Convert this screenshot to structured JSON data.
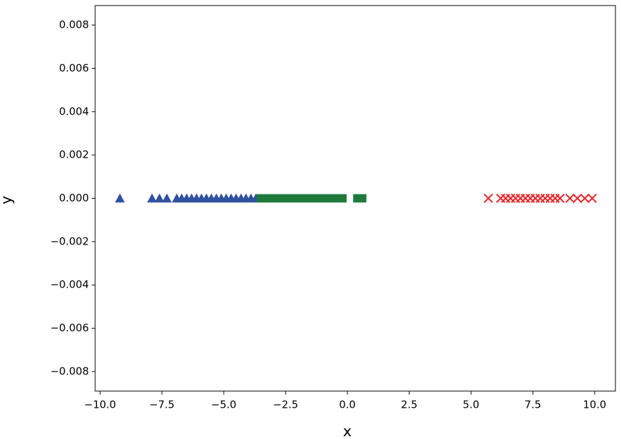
{
  "chart_data": {
    "type": "scatter",
    "x_label": "x",
    "y_label": "y",
    "xlim": [
      -10.2,
      10.84
    ],
    "ylim": [
      -0.0089,
      0.0089
    ],
    "xticks": [
      {
        "value": -10,
        "label": "−10.0"
      },
      {
        "value": -7.5,
        "label": "−7.5"
      },
      {
        "value": -5,
        "label": "−5.0"
      },
      {
        "value": -2.5,
        "label": "−2.5"
      },
      {
        "value": 0,
        "label": "0.0"
      },
      2.5,
      {
        "value": 5,
        "label": "5.0"
      },
      7.5,
      {
        "value": 10,
        "label": "10.0"
      }
    ],
    "yticks": [
      {
        "value": -0.008,
        "label": "−0.008"
      },
      {
        "value": -0.006,
        "label": "−0.006"
      },
      {
        "value": -0.004,
        "label": "−0.004"
      },
      {
        "value": -0.002,
        "label": "−0.002"
      },
      {
        "value": 0,
        "label": "0.000"
      },
      0.002,
      0.004,
      0.006,
      0.008
    ],
    "series": [
      {
        "color": "#3050a0",
        "marker": "triangle",
        "x": [
          -9.2,
          -7.9,
          -7.6,
          -7.3,
          -6.9,
          -6.7,
          -6.5,
          -6.3,
          -6.1,
          -5.9,
          -5.7,
          -5.5,
          -5.3,
          -5.1,
          -4.9,
          -4.7,
          -4.5,
          -4.3,
          -4.1,
          -3.9,
          -3.7
        ],
        "values": [
          0,
          0,
          0,
          0,
          0,
          0,
          0,
          0,
          0,
          0,
          0,
          0,
          0,
          0,
          0,
          0,
          0,
          0,
          0,
          0,
          0
        ]
      },
      {
        "color": "#1e7a3a",
        "marker": "square",
        "x": [
          -3.5,
          -3.3,
          -3.0,
          -2.8,
          -2.6,
          -2.4,
          -2.2,
          -2.0,
          -1.8,
          -1.6,
          -1.4,
          -1.2,
          -1.0,
          -0.8,
          -0.6,
          -0.4,
          -0.2,
          0.4,
          0.6
        ],
        "values": [
          0,
          0,
          0,
          0,
          0,
          0,
          0,
          0,
          0,
          0,
          0,
          0,
          0,
          0,
          0,
          0,
          0,
          0,
          0
        ]
      },
      {
        "color": "#e8262a",
        "marker": "x",
        "x": [
          5.7,
          6.2,
          6.4,
          6.6,
          6.8,
          7.0,
          7.2,
          7.4,
          7.6,
          7.8,
          8.0,
          8.2,
          8.4,
          8.6,
          9.0,
          9.3,
          9.6,
          9.9
        ],
        "values": [
          0,
          0,
          0,
          0,
          0,
          0,
          0,
          0,
          0,
          0,
          0,
          0,
          0,
          0,
          0,
          0,
          0,
          0
        ]
      }
    ]
  }
}
